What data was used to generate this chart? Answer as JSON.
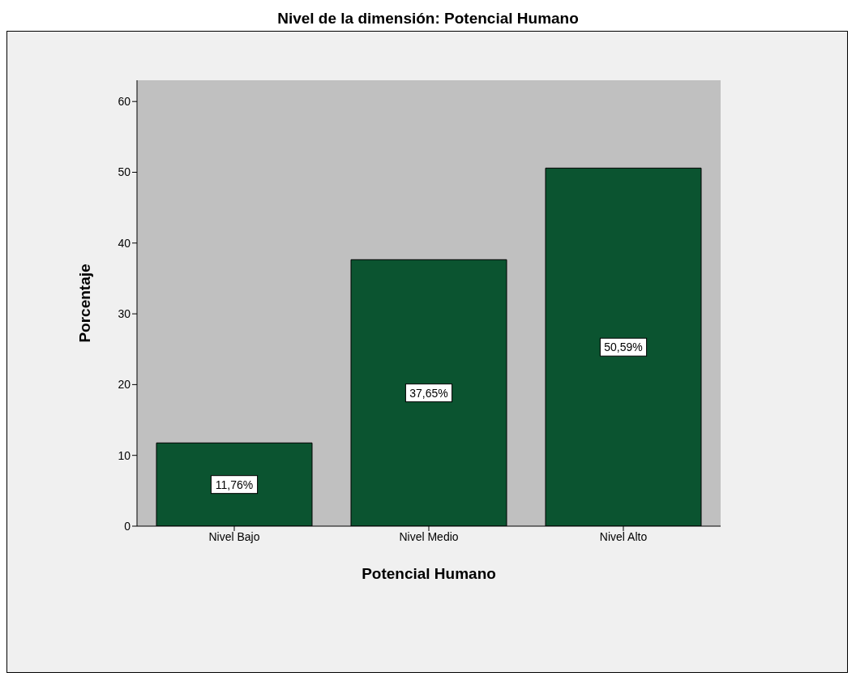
{
  "chart_data": {
    "type": "bar",
    "title": "Nivel de la dimensión: Potencial Humano",
    "xlabel": "Potencial Humano",
    "ylabel": "Porcentaje",
    "categories": [
      "Nivel Bajo",
      "Nivel Medio",
      "Nivel Alto"
    ],
    "values": [
      11.76,
      37.65,
      50.59
    ],
    "value_labels": [
      "11,76%",
      "37,65%",
      "50,59%"
    ],
    "color": "#0b5430",
    "ylim": [
      0,
      63
    ],
    "yticks": [
      0,
      10,
      20,
      30,
      40,
      50,
      60
    ],
    "grid": false
  }
}
